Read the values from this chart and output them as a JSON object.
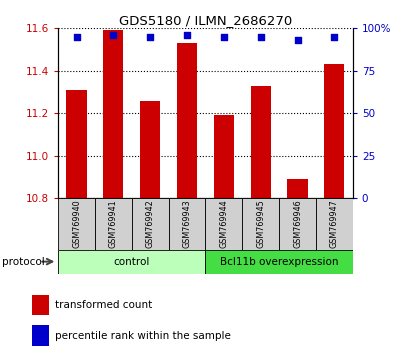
{
  "title": "GDS5180 / ILMN_2686270",
  "samples": [
    "GSM769940",
    "GSM769941",
    "GSM769942",
    "GSM769943",
    "GSM769944",
    "GSM769945",
    "GSM769946",
    "GSM769947"
  ],
  "transformed_counts": [
    11.31,
    11.59,
    11.26,
    11.53,
    11.19,
    11.33,
    10.89,
    11.43
  ],
  "percentile_ranks": [
    95,
    96,
    95,
    96,
    95,
    95,
    93,
    95
  ],
  "ylim_left": [
    10.8,
    11.6
  ],
  "ylim_right": [
    0,
    100
  ],
  "yticks_left": [
    10.8,
    11.0,
    11.2,
    11.4,
    11.6
  ],
  "yticks_right": [
    0,
    25,
    50,
    75,
    100
  ],
  "ytick_labels_right": [
    "0",
    "25",
    "50",
    "75",
    "100%"
  ],
  "bar_color": "#cc0000",
  "dot_color": "#0000cc",
  "groups": [
    {
      "label": "control",
      "start": 0,
      "end": 4,
      "color": "#bbffbb"
    },
    {
      "label": "Bcl11b overexpression",
      "start": 4,
      "end": 8,
      "color": "#44dd44"
    }
  ],
  "protocol_label": "protocol",
  "legend_items": [
    {
      "color": "#cc0000",
      "label": "transformed count"
    },
    {
      "color": "#0000cc",
      "label": "percentile rank within the sample"
    }
  ],
  "tick_label_color_left": "#cc0000",
  "tick_label_color_right": "#0000cc",
  "sample_box_color": "#d0d0d0"
}
